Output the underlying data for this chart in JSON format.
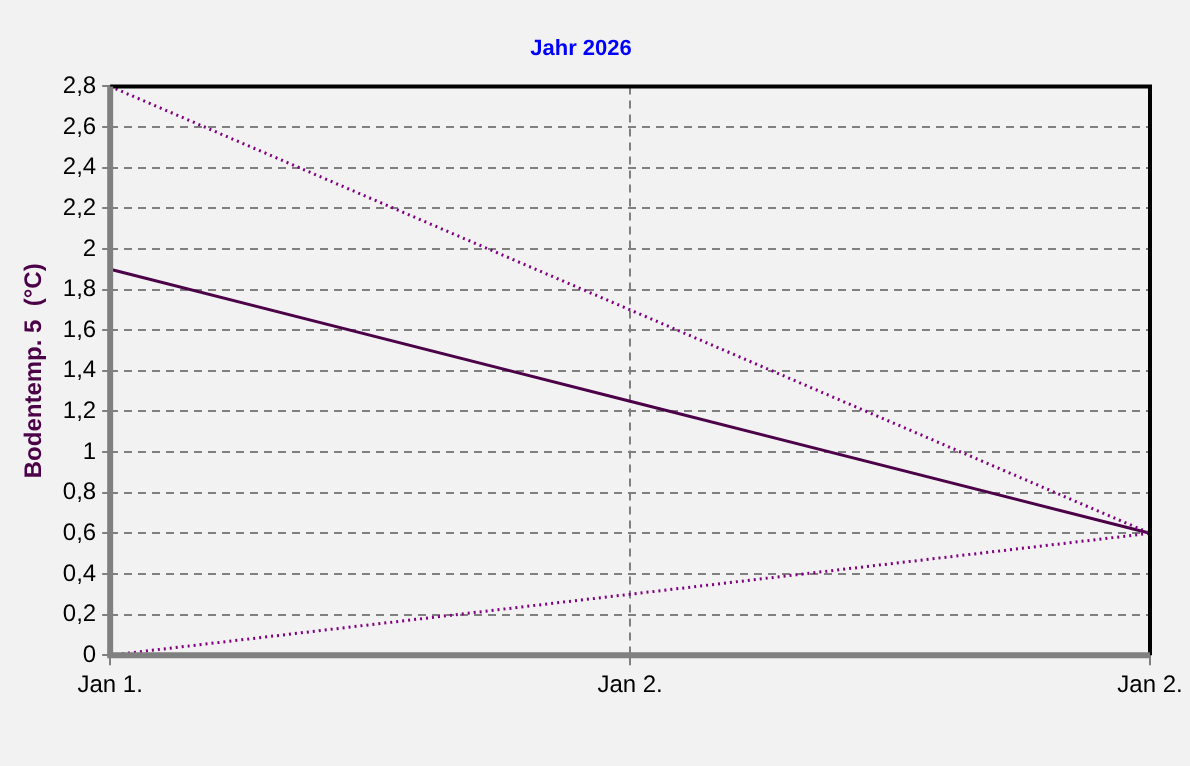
{
  "chart_data": {
    "type": "line",
    "title": "Jahr 2026",
    "ylabel": "Bodentemp. 5  (°C)",
    "categories": [
      "Jan 1.",
      "Jan 2.",
      "Jan 2."
    ],
    "series": [
      {
        "color": "#800080",
        "values": [
          2.8,
          1.7,
          0.6
        ],
        "line_style": "dotted"
      },
      {
        "color": "#4b0048",
        "values": [
          1.9,
          1.25,
          0.6
        ],
        "line_style": "solid"
      },
      {
        "color": "#800080",
        "values": [
          0,
          0.3,
          0.6
        ],
        "line_style": "dotted"
      }
    ],
    "ylim": [
      0,
      2.8
    ],
    "yticks": [
      0,
      {
        "value": 0.2,
        "label": "0,2"
      },
      {
        "value": 0.4,
        "label": "0,4"
      },
      {
        "value": 0.6,
        "label": "0,6"
      },
      {
        "value": 0.8,
        "label": "0,8"
      },
      1,
      {
        "value": 1.2,
        "label": "1,2"
      },
      {
        "value": 1.4,
        "label": "1,4"
      },
      {
        "value": 1.6,
        "label": "1,6"
      },
      {
        "value": 1.8,
        "label": "1,8"
      },
      2,
      {
        "value": 2.2,
        "label": "2,2"
      },
      {
        "value": 2.4,
        "label": "2,4"
      },
      {
        "value": 2.6,
        "label": "2,6"
      },
      {
        "value": 2.8,
        "label": "2,8"
      }
    ],
    "grid": true,
    "legend": false,
    "marker": "none"
  }
}
